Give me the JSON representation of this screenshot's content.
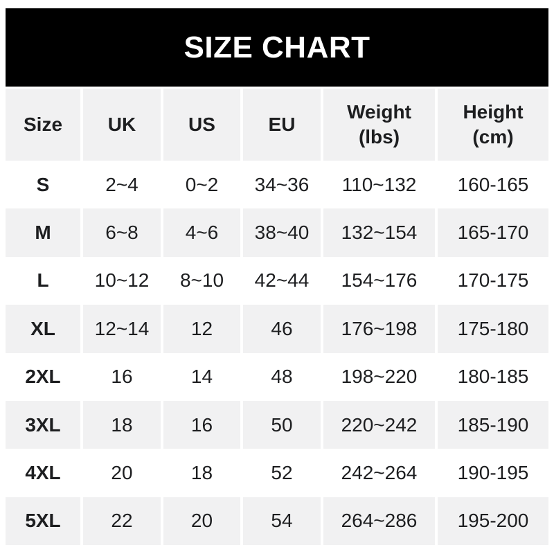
{
  "banner": {
    "title": "SIZE CHART"
  },
  "colors": {
    "banner_bg": "#000000",
    "banner_text": "#ffffff",
    "cell_bg_gray": "#f1f1f2",
    "cell_bg_white": "#ffffff",
    "text": "#1d1e20"
  },
  "table": {
    "headers": [
      "Size",
      "UK",
      "US",
      "EU",
      "Weight\n(lbs)",
      "Height\n(cm)"
    ]
  },
  "chart_data": {
    "type": "table",
    "title": "SIZE CHART",
    "columns": [
      "Size",
      "UK",
      "US",
      "EU",
      "Weight (lbs)",
      "Height (cm)"
    ],
    "rows": [
      [
        "S",
        "2~4",
        "0~2",
        "34~36",
        "110~132",
        "160-165"
      ],
      [
        "M",
        "6~8",
        "4~6",
        "38~40",
        "132~154",
        "165-170"
      ],
      [
        "L",
        "10~12",
        "8~10",
        "42~44",
        "154~176",
        "170-175"
      ],
      [
        "XL",
        "12~14",
        "12",
        "46",
        "176~198",
        "175-180"
      ],
      [
        "2XL",
        "16",
        "14",
        "48",
        "198~220",
        "180-185"
      ],
      [
        "3XL",
        "18",
        "16",
        "50",
        "220~242",
        "185-190"
      ],
      [
        "4XL",
        "20",
        "18",
        "52",
        "242~264",
        "190-195"
      ],
      [
        "5XL",
        "22",
        "20",
        "54",
        "264~286",
        "195-200"
      ]
    ],
    "layout": {
      "alternating_row_shading": true,
      "shaded_rows": [
        "M",
        "XL",
        "3XL",
        "5XL"
      ],
      "header_shaded": true
    }
  }
}
